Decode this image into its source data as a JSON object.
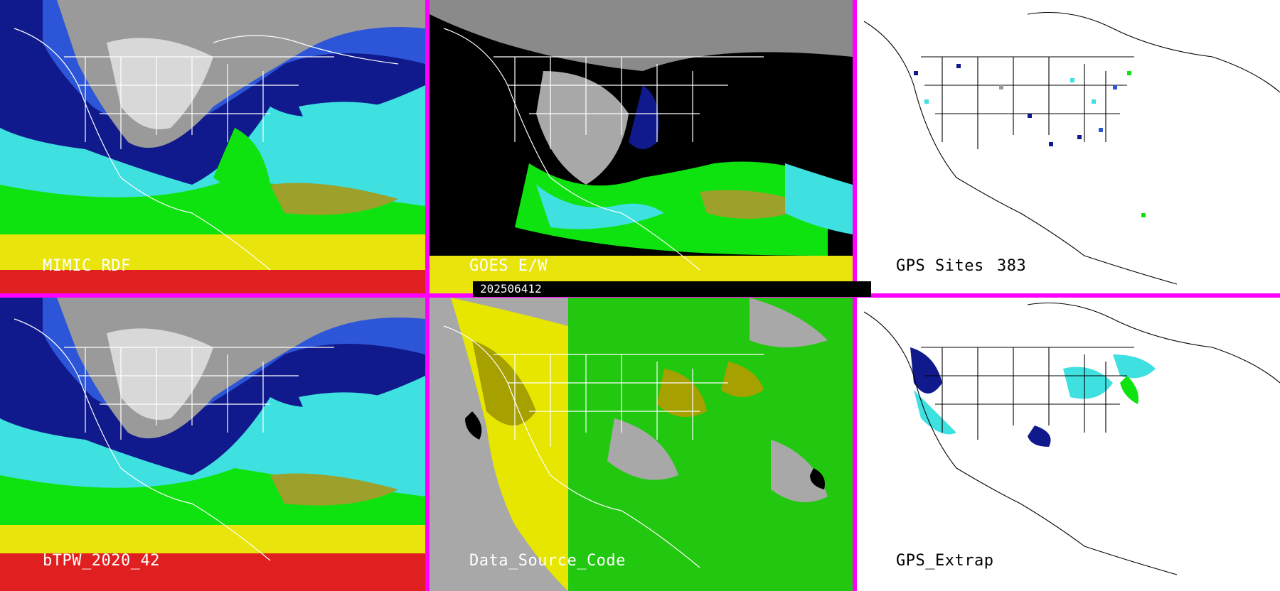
{
  "panels": [
    {
      "id": "mimic-rdf",
      "label": "MIMIC RDF",
      "style": "tpw"
    },
    {
      "id": "goes-ew",
      "label": "GOES E/W",
      "style": "goes"
    },
    {
      "id": "gps-sites",
      "label": "GPS Sites",
      "count": "383",
      "style": "gps"
    },
    {
      "id": "btpw",
      "label": "bTPW_2020_42",
      "style": "tpw"
    },
    {
      "id": "data-source-code",
      "label": "Data_Source_Code",
      "style": "dsc"
    },
    {
      "id": "gps-extrap",
      "label": "GPS_Extrap",
      "style": "gps"
    }
  ],
  "timestamp": "202506412",
  "colors": {
    "border": "#ff00ff",
    "tpw_scale": [
      "#ffffff",
      "#9a9a9a",
      "#101a8c",
      "#2c55d8",
      "#3fe0e0",
      "#0fe30f",
      "#9da02a",
      "#e8e40c",
      "#e02020"
    ],
    "dsc_scale": [
      "#a8a8a8",
      "#e6e600",
      "#a6a000",
      "#22c70f",
      "#000000"
    ]
  }
}
